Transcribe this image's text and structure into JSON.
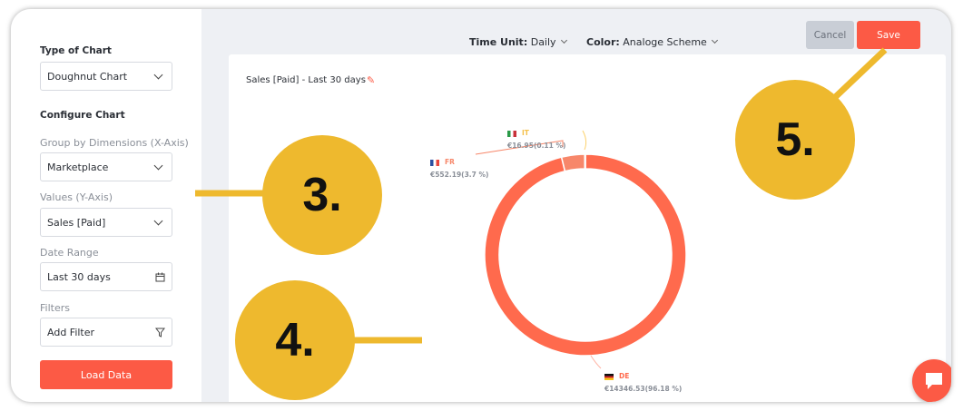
{
  "sidebar": {
    "type_of_chart_label": "Type of Chart",
    "type_of_chart_value": "Doughnut Chart",
    "configure_label": "Configure Chart",
    "group_label": "Group by Dimensions (X-Axis)",
    "group_value": "Marketplace",
    "values_label": "Values (Y-Axis)",
    "values_value": "Sales [Paid]",
    "date_label": "Date Range",
    "date_value": "Last 30 days",
    "filters_label": "Filters",
    "filters_value": "Add Filter",
    "load_button": "Load Data"
  },
  "toolbar": {
    "time_unit_label": "Time Unit:",
    "time_unit_value": "Daily",
    "color_label": "Color:",
    "color_value": "Analoge Scheme",
    "cancel": "Cancel",
    "save": "Save"
  },
  "card": {
    "title": "Sales [Paid] - Last 30 days"
  },
  "chart_data": {
    "type": "pie",
    "variant": "doughnut",
    "categories": [
      "DE",
      "FR",
      "IT"
    ],
    "values": [
      14346.53,
      552.19,
      16.95
    ],
    "labels": [
      "€14346.53(96.18 %)",
      "€552.19(3.7 %)",
      "€16.95(0.11 %)"
    ],
    "colors": [
      "#ff6a4d",
      "#f7876a",
      "#fcd16b"
    ]
  },
  "callouts": [
    "3.",
    "4.",
    "5."
  ],
  "accent": "#fc5a45",
  "callout_color": "#eeb92e"
}
